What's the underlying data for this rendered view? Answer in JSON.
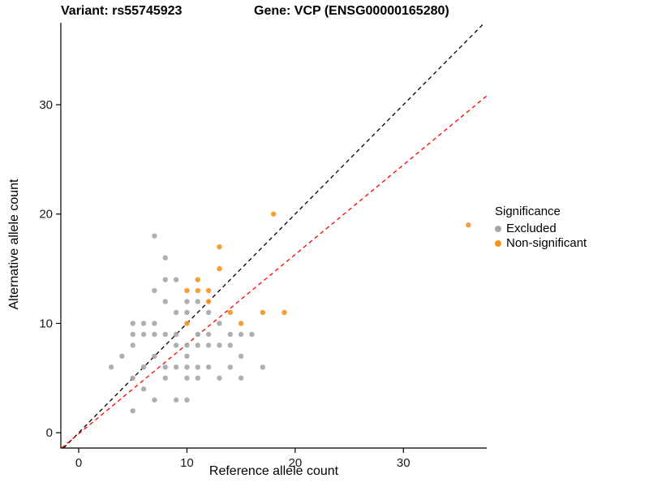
{
  "titles": {
    "variant": "Variant: rs55745923",
    "gene": "Gene: VCP (ENSG00000165280)"
  },
  "legend": {
    "title": "Significance",
    "items": [
      {
        "label": "Excluded",
        "color": "#a6a6a6"
      },
      {
        "label": "Non-significant",
        "color": "#f7941d"
      }
    ]
  },
  "chart_data": {
    "type": "scatter",
    "xlabel": "Reference allele count",
    "ylabel": "Alternative allele count",
    "x_ticks": [
      0,
      10,
      20,
      30
    ],
    "y_ticks": [
      0,
      10,
      20,
      30
    ],
    "x_range": [
      -1.65,
      37.7
    ],
    "y_range": [
      -1.4,
      37.5
    ],
    "grid": false,
    "legend_position": "right",
    "series": [
      {
        "name": "Excluded",
        "color": "#a6a6a6",
        "points": [
          [
            3,
            6
          ],
          [
            4,
            7
          ],
          [
            5,
            2
          ],
          [
            5,
            5
          ],
          [
            5,
            8
          ],
          [
            5,
            9
          ],
          [
            5,
            10
          ],
          [
            6,
            4
          ],
          [
            6,
            6
          ],
          [
            6,
            9
          ],
          [
            6,
            10
          ],
          [
            7,
            3
          ],
          [
            7,
            7
          ],
          [
            7,
            9
          ],
          [
            7,
            10
          ],
          [
            7,
            13
          ],
          [
            7,
            18
          ],
          [
            8,
            5
          ],
          [
            8,
            6
          ],
          [
            8,
            9
          ],
          [
            8,
            12
          ],
          [
            8,
            14
          ],
          [
            8,
            16
          ],
          [
            9,
            3
          ],
          [
            9,
            6
          ],
          [
            9,
            8
          ],
          [
            9,
            9
          ],
          [
            9,
            11
          ],
          [
            9,
            14
          ],
          [
            10,
            3
          ],
          [
            10,
            5
          ],
          [
            10,
            6
          ],
          [
            10,
            7
          ],
          [
            10,
            8
          ],
          [
            10,
            11
          ],
          [
            10,
            12
          ],
          [
            11,
            5
          ],
          [
            11,
            6
          ],
          [
            11,
            8
          ],
          [
            11,
            9
          ],
          [
            11,
            12
          ],
          [
            12,
            6
          ],
          [
            12,
            8
          ],
          [
            12,
            9
          ],
          [
            12,
            11
          ],
          [
            13,
            5
          ],
          [
            13,
            8
          ],
          [
            13,
            10
          ],
          [
            14,
            6
          ],
          [
            14,
            8
          ],
          [
            14,
            9
          ],
          [
            15,
            5
          ],
          [
            15,
            7
          ],
          [
            15,
            9
          ],
          [
            16,
            9
          ],
          [
            17,
            6
          ]
        ]
      },
      {
        "name": "Non-significant",
        "color": "#f7941d",
        "points": [
          [
            10,
            10
          ],
          [
            10,
            13
          ],
          [
            11,
            13
          ],
          [
            11,
            14
          ],
          [
            12,
            12
          ],
          [
            12,
            13
          ],
          [
            13,
            15
          ],
          [
            13,
            17
          ],
          [
            14,
            11
          ],
          [
            15,
            10
          ],
          [
            17,
            11
          ],
          [
            18,
            20
          ],
          [
            19,
            11
          ],
          [
            36,
            19
          ]
        ]
      }
    ],
    "lines": [
      {
        "name": "identity",
        "slope": 1,
        "intercept": 0,
        "color": "#000000",
        "dash": "5,4"
      },
      {
        "name": "fit",
        "slope": 0.82,
        "intercept": -0.1,
        "color": "#ff0000",
        "dash": "5,4"
      }
    ]
  }
}
